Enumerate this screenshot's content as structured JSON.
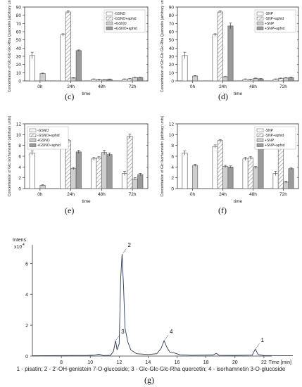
{
  "colors": {
    "axis": "#333333",
    "bar_pattern_stroke": "#888888",
    "bar_gray_light": "#cfcfcf",
    "bar_gray_dark": "#9a9a9a",
    "trace": "#2c3a55",
    "highlight": "#ffffff"
  },
  "panel_labels": {
    "c": "(c)",
    "d": "(d)",
    "e": "(e)",
    "f": "(f)",
    "g": "(g)"
  },
  "caption": "1 - pisatin; 2 - 2'-OH-genistein 7-O-glucoside; 3 - Glc-Glc-Glc-Rha quercetin; 4 - isorhamnetin 3-O-glucoside",
  "chart_data": [
    {
      "id": "c",
      "type": "bar",
      "ylabel": "Concentration of Glc-Glc-Glc-Rha Quercetin (arbitrary units)",
      "xlabel": "time",
      "ylim": [
        0,
        90
      ],
      "yticks": [
        0,
        10,
        20,
        30,
        40,
        50,
        60,
        70,
        80,
        90
      ],
      "categories": [
        "0h",
        "24h",
        "48h",
        "72h"
      ],
      "legend_position": "top-right",
      "series": [
        {
          "name": "-GSNO",
          "pattern": "open",
          "values": [
            31,
            56,
            2,
            2
          ],
          "err": [
            4,
            1.5,
            0.5,
            0.5
          ]
        },
        {
          "name": "-GSNO+aphid",
          "pattern": "hatch",
          "values": [
            null,
            84,
            1.5,
            2.5
          ],
          "err": [
            0,
            1.5,
            0.5,
            0.5
          ]
        },
        {
          "name": "+GSNO",
          "pattern": "light",
          "values": [
            9,
            3.5,
            1.5,
            4
          ],
          "err": [
            0.5,
            0.5,
            0.3,
            0.4
          ]
        },
        {
          "name": "+GSNO+aphid",
          "pattern": "dark",
          "values": [
            null,
            37,
            2,
            4
          ],
          "err": [
            0,
            0.8,
            0.4,
            0.4
          ]
        }
      ]
    },
    {
      "id": "d",
      "type": "bar",
      "ylabel": "Concentration of Glc-Glc-Glc-Rha Quercetin (arbitrary units)",
      "xlabel": "time",
      "ylim": [
        0,
        90
      ],
      "yticks": [
        0,
        10,
        20,
        30,
        40,
        50,
        60,
        70,
        80,
        90
      ],
      "categories": [
        "0h",
        "24h",
        "48h",
        "72h"
      ],
      "legend_position": "top-right",
      "series": [
        {
          "name": "-SNP",
          "pattern": "open",
          "values": [
            31,
            56,
            2,
            2
          ],
          "err": [
            4,
            1.5,
            0.5,
            0.5
          ]
        },
        {
          "name": "-SNP+aphid",
          "pattern": "hatch",
          "values": [
            null,
            84,
            1.5,
            3
          ],
          "err": [
            0,
            1.5,
            0.5,
            0.5
          ]
        },
        {
          "name": "+SNP",
          "pattern": "light",
          "values": [
            6,
            5,
            3,
            3.5
          ],
          "err": [
            0.5,
            0.5,
            0.5,
            0.4
          ]
        },
        {
          "name": "+SNP+aphid",
          "pattern": "dark",
          "values": [
            null,
            67,
            2.5,
            4
          ],
          "err": [
            0,
            3.5,
            0.5,
            0.5
          ]
        }
      ]
    },
    {
      "id": "e",
      "type": "bar",
      "ylabel": "Concentration of Glc isorhamnetin (arbitrary units)",
      "xlabel": "time",
      "ylim": [
        0,
        12
      ],
      "yticks": [
        0,
        2,
        4,
        6,
        8,
        10,
        12
      ],
      "categories": [
        "0h",
        "24h",
        "48h",
        "72h"
      ],
      "legend_position": "top-left",
      "series": [
        {
          "name": "-GSNO",
          "pattern": "open",
          "values": [
            6.6,
            7.8,
            5.5,
            2.8
          ],
          "err": [
            0.4,
            0.3,
            0.3,
            0.4
          ]
        },
        {
          "name": "-GSNO+aphid",
          "pattern": "hatch",
          "values": [
            null,
            8.9,
            5.7,
            9.7
          ],
          "err": [
            0,
            0.2,
            0.2,
            0.4
          ]
        },
        {
          "name": "+GSNO",
          "pattern": "light",
          "values": [
            0.6,
            3.7,
            6.7,
            1.8
          ],
          "err": [
            0.1,
            0.2,
            0.4,
            0.2
          ]
        },
        {
          "name": "+GSNO+aphid",
          "pattern": "dark",
          "values": [
            null,
            6.8,
            6.3,
            2.6
          ],
          "err": [
            0,
            0.3,
            0.3,
            0.2
          ]
        }
      ]
    },
    {
      "id": "f",
      "type": "bar",
      "ylabel": "Concentration of Glc Isorhamnetin (arbitrary units)",
      "xlabel": "time",
      "ylim": [
        0,
        12
      ],
      "yticks": [
        0,
        2,
        4,
        6,
        8,
        10,
        12
      ],
      "categories": [
        "0h",
        "24h",
        "48h",
        "72h"
      ],
      "legend_position": "top-right",
      "series": [
        {
          "name": "-SNP",
          "pattern": "open",
          "values": [
            6.6,
            7.8,
            5.5,
            2.8
          ],
          "err": [
            0.4,
            0.3,
            0.3,
            0.4
          ]
        },
        {
          "name": "-SNP+aphid",
          "pattern": "hatch",
          "values": [
            null,
            8.9,
            5.7,
            9.7
          ],
          "err": [
            0,
            0.2,
            0.2,
            0.4
          ]
        },
        {
          "name": "+SNP",
          "pattern": "light",
          "values": [
            4.3,
            4.1,
            3.9,
            1.2
          ],
          "err": [
            0.2,
            0.2,
            0.2,
            0.2
          ]
        },
        {
          "name": "+SNP+aphid",
          "pattern": "dark",
          "values": [
            null,
            4.0,
            8.3,
            3.7
          ],
          "err": [
            0,
            0.2,
            0.8,
            0.2
          ]
        }
      ]
    },
    {
      "id": "g",
      "type": "line",
      "ylabel": "Intens.",
      "y_multiplier_label": "x10",
      "y_multiplier_exp": "4",
      "xlabel": "Time [min]",
      "xlim": [
        6,
        24
      ],
      "ylim": [
        0,
        7.2
      ],
      "xticks": [
        8,
        10,
        12,
        14,
        16,
        18,
        20,
        22
      ],
      "yticks": [
        0,
        2,
        4,
        6
      ],
      "peaks": [
        {
          "label": "3",
          "x": 11.75,
          "y": 1.0
        },
        {
          "label": "2",
          "x": 12.2,
          "y": 6.6
        },
        {
          "label": "4",
          "x": 15.1,
          "y": 1.0
        },
        {
          "label": "1",
          "x": 21.4,
          "y": 0.45
        }
      ],
      "trace": [
        [
          6.0,
          0.02
        ],
        [
          8.0,
          0.03
        ],
        [
          9.8,
          0.04
        ],
        [
          10.3,
          0.06
        ],
        [
          10.6,
          0.12
        ],
        [
          10.9,
          0.03
        ],
        [
          11.4,
          0.05
        ],
        [
          11.6,
          0.3
        ],
        [
          11.75,
          1.0
        ],
        [
          11.85,
          0.4
        ],
        [
          12.0,
          0.8
        ],
        [
          12.1,
          5.0
        ],
        [
          12.2,
          6.6
        ],
        [
          12.3,
          4.5
        ],
        [
          12.4,
          1.8
        ],
        [
          12.6,
          0.9
        ],
        [
          12.8,
          0.4
        ],
        [
          13.2,
          0.15
        ],
        [
          14.0,
          0.1
        ],
        [
          14.6,
          0.15
        ],
        [
          14.9,
          0.5
        ],
        [
          15.1,
          1.0
        ],
        [
          15.3,
          0.55
        ],
        [
          15.5,
          0.25
        ],
        [
          15.8,
          0.2
        ],
        [
          16.2,
          0.08
        ],
        [
          17.0,
          0.05
        ],
        [
          18.5,
          0.07
        ],
        [
          18.7,
          0.18
        ],
        [
          18.9,
          0.05
        ],
        [
          20.0,
          0.04
        ],
        [
          21.2,
          0.06
        ],
        [
          21.4,
          0.45
        ],
        [
          21.6,
          0.1
        ],
        [
          22.0,
          0.03
        ],
        [
          24.0,
          0.02
        ]
      ]
    }
  ]
}
